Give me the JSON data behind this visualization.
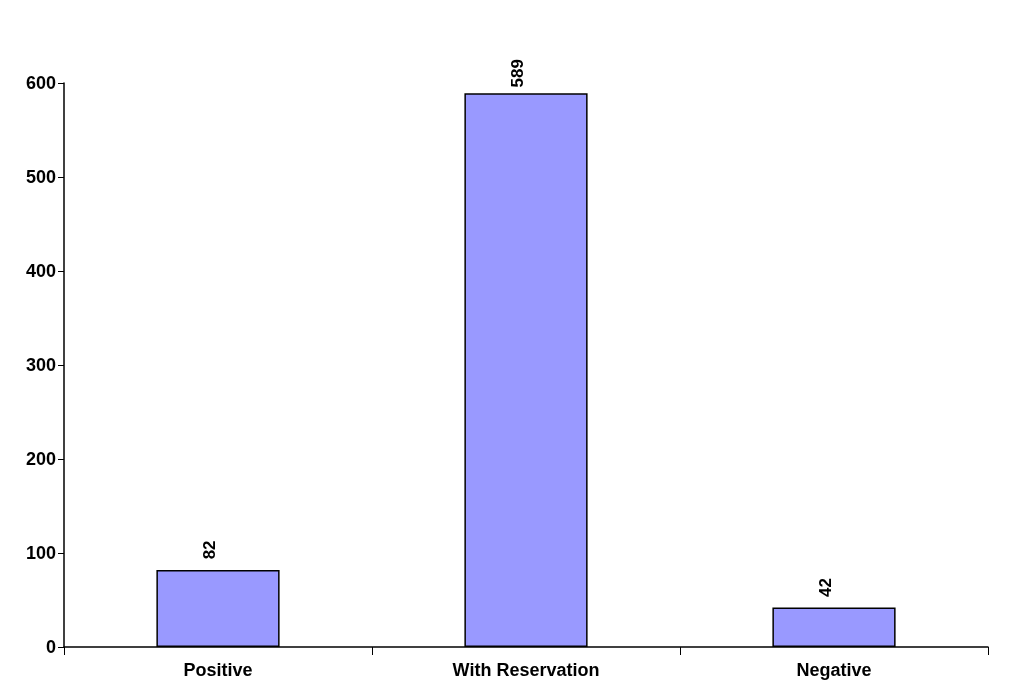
{
  "chart_data": {
    "type": "bar",
    "categories": [
      "Positive",
      "With Reservation",
      "Negative"
    ],
    "values": [
      82,
      589,
      42
    ],
    "color": "#9999ff",
    "ylim": [
      0,
      600
    ],
    "yticks": [
      0,
      100,
      200,
      300,
      400,
      500,
      600
    ],
    "grid": false,
    "data_labels": true
  }
}
